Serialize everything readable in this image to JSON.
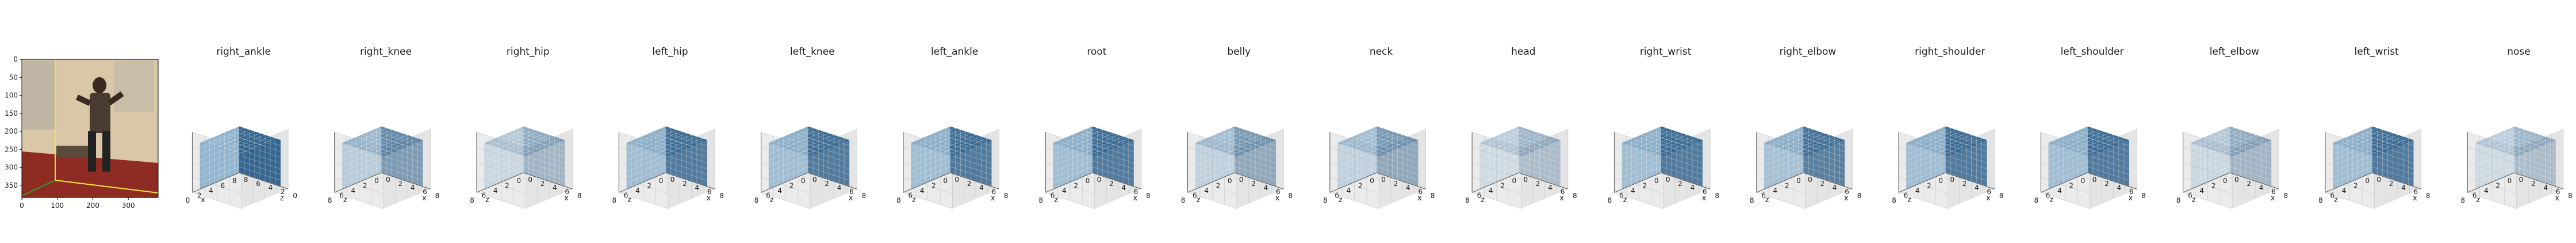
{
  "chart_data": [
    {
      "type": "image",
      "panel": "input-image",
      "xticks": [
        "0",
        "100",
        "200",
        "300"
      ],
      "yticks": [
        "0",
        "50",
        "100",
        "150",
        "200",
        "250",
        "300",
        "350"
      ],
      "xlim": [
        0,
        384
      ],
      "ylim": [
        384,
        0
      ],
      "colors": {
        "overlay_axis_x": "#f2e33a",
        "overlay_axis_y": "#f2e33a",
        "overlay_axis_z": "#2ca02c"
      }
    },
    {
      "type": "voxel3d",
      "title": "right_ankle",
      "grid": [
        8,
        8,
        8
      ],
      "opacity": 0.95,
      "bottom_ticks": [
        "0",
        "2",
        "4",
        "6",
        "8"
      ],
      "bottom_label": "x",
      "right_ticks": [
        "8",
        "6",
        "4",
        "2",
        "0"
      ],
      "right_label": "z"
    },
    {
      "type": "voxel3d",
      "title": "right_knee",
      "grid": [
        8,
        8,
        8
      ],
      "opacity": 0.55,
      "bottom_ticks": [
        "8",
        "6",
        "4",
        "2",
        "0"
      ],
      "bottom_label": "z",
      "right_ticks": [
        "0",
        "2",
        "4",
        "6",
        "8"
      ],
      "right_label": "x"
    },
    {
      "type": "voxel3d",
      "title": "right_hip",
      "grid": [
        8,
        8,
        8
      ],
      "opacity": 0.35,
      "bottom_ticks": [
        "8",
        "6",
        "4",
        "2",
        "0"
      ],
      "bottom_label": "z",
      "right_ticks": [
        "0",
        "2",
        "4",
        "6",
        "8"
      ],
      "right_label": "x"
    },
    {
      "type": "voxel3d",
      "title": "left_hip",
      "grid": [
        8,
        8,
        8
      ],
      "opacity": 0.8,
      "bottom_ticks": [
        "8",
        "6",
        "4",
        "2",
        "0"
      ],
      "bottom_label": "z",
      "right_ticks": [
        "0",
        "2",
        "4",
        "6",
        "8"
      ],
      "right_label": "x"
    },
    {
      "type": "voxel3d",
      "title": "left_knee",
      "grid": [
        8,
        8,
        8
      ],
      "opacity": 0.8,
      "bottom_ticks": [
        "8",
        "6",
        "4",
        "2",
        "0"
      ],
      "bottom_label": "z",
      "right_ticks": [
        "0",
        "2",
        "4",
        "6",
        "8"
      ],
      "right_label": "x"
    },
    {
      "type": "voxel3d",
      "title": "left_ankle",
      "grid": [
        8,
        8,
        8
      ],
      "opacity": 0.8,
      "bottom_ticks": [
        "8",
        "6",
        "4",
        "2",
        "0"
      ],
      "bottom_label": "z",
      "right_ticks": [
        "0",
        "2",
        "4",
        "6",
        "8"
      ],
      "right_label": "x"
    },
    {
      "type": "voxel3d",
      "title": "root",
      "grid": [
        8,
        8,
        8
      ],
      "opacity": 0.8,
      "bottom_ticks": [
        "8",
        "6",
        "4",
        "2",
        "0"
      ],
      "bottom_label": "z",
      "right_ticks": [
        "0",
        "2",
        "4",
        "6",
        "8"
      ],
      "right_label": "x"
    },
    {
      "type": "voxel3d",
      "title": "belly",
      "grid": [
        8,
        8,
        8
      ],
      "opacity": 0.45,
      "bottom_ticks": [
        "8",
        "6",
        "4",
        "2",
        "0"
      ],
      "bottom_label": "z",
      "right_ticks": [
        "0",
        "2",
        "4",
        "6",
        "8"
      ],
      "right_label": "x"
    },
    {
      "type": "voxel3d",
      "title": "neck",
      "grid": [
        8,
        8,
        8
      ],
      "opacity": 0.45,
      "bottom_ticks": [
        "8",
        "6",
        "4",
        "2",
        "0"
      ],
      "bottom_label": "z",
      "right_ticks": [
        "0",
        "2",
        "4",
        "6",
        "8"
      ],
      "right_label": "x"
    },
    {
      "type": "voxel3d",
      "title": "head",
      "grid": [
        8,
        8,
        8
      ],
      "opacity": 0.3,
      "bottom_ticks": [
        "8",
        "6",
        "4",
        "2",
        "0"
      ],
      "bottom_label": "z",
      "right_ticks": [
        "0",
        "2",
        "4",
        "6",
        "8"
      ],
      "right_label": "x"
    },
    {
      "type": "voxel3d",
      "title": "right_wrist",
      "grid": [
        8,
        8,
        8
      ],
      "opacity": 0.8,
      "bottom_ticks": [
        "8",
        "6",
        "4",
        "2",
        "0"
      ],
      "bottom_label": "z",
      "right_ticks": [
        "0",
        "2",
        "4",
        "6",
        "8"
      ],
      "right_label": "x"
    },
    {
      "type": "voxel3d",
      "title": "right_elbow",
      "grid": [
        8,
        8,
        8
      ],
      "opacity": 0.75,
      "bottom_ticks": [
        "8",
        "6",
        "4",
        "2",
        "0"
      ],
      "bottom_label": "z",
      "right_ticks": [
        "0",
        "2",
        "4",
        "6",
        "8"
      ],
      "right_label": "x"
    },
    {
      "type": "voxel3d",
      "title": "right_shoulder",
      "grid": [
        8,
        8,
        8
      ],
      "opacity": 0.8,
      "bottom_ticks": [
        "8",
        "6",
        "4",
        "2",
        "0"
      ],
      "bottom_label": "z",
      "right_ticks": [
        "0",
        "2",
        "4",
        "6",
        "8"
      ],
      "right_label": "x"
    },
    {
      "type": "voxel3d",
      "title": "left_shoulder",
      "grid": [
        8,
        8,
        8
      ],
      "opacity": 0.8,
      "bottom_ticks": [
        "8",
        "6",
        "4",
        "2",
        "0"
      ],
      "bottom_label": "z",
      "right_ticks": [
        "0",
        "2",
        "4",
        "6",
        "8"
      ],
      "right_label": "x"
    },
    {
      "type": "voxel3d",
      "title": "left_elbow",
      "grid": [
        8,
        8,
        8
      ],
      "opacity": 0.35,
      "bottom_ticks": [
        "8",
        "6",
        "4",
        "2",
        "0"
      ],
      "bottom_label": "z",
      "right_ticks": [
        "0",
        "2",
        "4",
        "6",
        "8"
      ],
      "right_label": "x"
    },
    {
      "type": "voxel3d",
      "title": "left_wrist",
      "grid": [
        8,
        8,
        8
      ],
      "opacity": 0.8,
      "bottom_ticks": [
        "8",
        "6",
        "4",
        "2",
        "0"
      ],
      "bottom_label": "z",
      "right_ticks": [
        "0",
        "2",
        "4",
        "6",
        "8"
      ],
      "right_label": "x"
    },
    {
      "type": "voxel3d",
      "title": "nose",
      "grid": [
        8,
        8,
        8
      ],
      "opacity": 0.3,
      "bottom_ticks": [
        "8",
        "6",
        "4",
        "2",
        "0"
      ],
      "bottom_label": "z",
      "right_ticks": [
        "0",
        "2",
        "4",
        "6",
        "8"
      ],
      "right_label": "x"
    }
  ],
  "colors": {
    "voxel": "#2c5f8a",
    "voxel_light": "#8fb2cc",
    "axis": "#000000",
    "grid": "#cfcfcf",
    "pane": "#f2f2f2",
    "photo_floor": "#8e2b22",
    "photo_wall": "#d9c7a8"
  }
}
